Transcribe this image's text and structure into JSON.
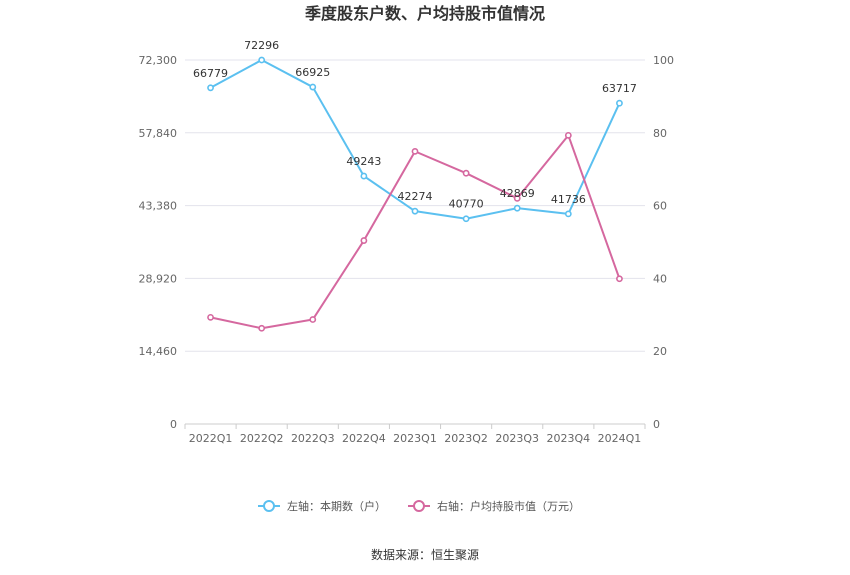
{
  "chart_data": {
    "type": "line",
    "title": "季度股东户数、户均持股市值情况",
    "categories": [
      "2022Q1",
      "2022Q2",
      "2022Q3",
      "2022Q4",
      "2023Q1",
      "2023Q2",
      "2023Q3",
      "2023Q4",
      "2024Q1"
    ],
    "left_axis": {
      "ylim": [
        0,
        72300
      ],
      "ticks": [
        "0",
        "14,460",
        "28,920",
        "43,380",
        "57,840",
        "72,300"
      ]
    },
    "right_axis": {
      "ylim": [
        0,
        100
      ],
      "ticks": [
        "0",
        "20",
        "40",
        "60",
        "80",
        "100"
      ]
    },
    "grid": true,
    "legend_position": "bottom",
    "series": [
      {
        "name": "左轴：本期数（户）",
        "axis": "left",
        "color": "#5bc0f0",
        "values": [
          66779,
          72296,
          66925,
          49243,
          42274,
          40770,
          42869,
          41736,
          63717
        ],
        "labels": [
          "66779",
          "72296",
          "66925",
          "49243",
          "42274",
          "40770",
          "42869",
          "41736",
          "63717"
        ]
      },
      {
        "name": "右轴：户均持股市值（万元）",
        "axis": "right",
        "color": "#d5689f",
        "values": [
          29.3,
          26.3,
          28.7,
          50.4,
          74.9,
          68.9,
          62.0,
          79.3,
          39.9
        ]
      }
    ],
    "source": "数据来源：恒生聚源"
  }
}
